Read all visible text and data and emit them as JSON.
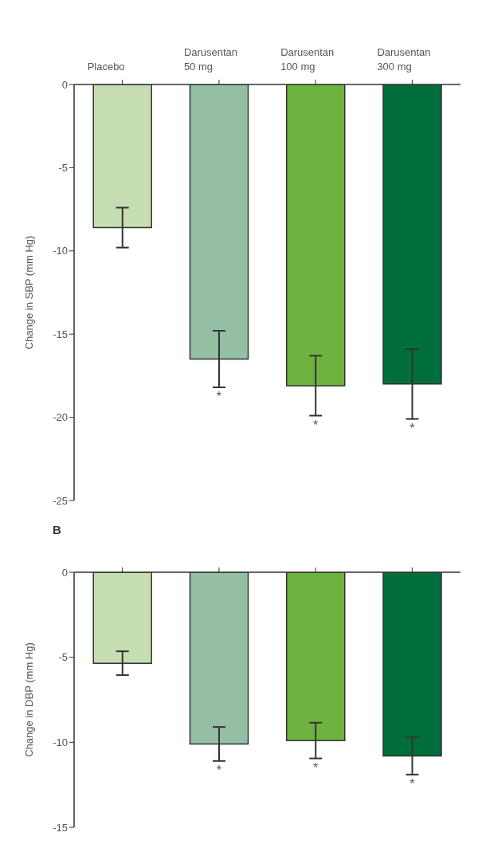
{
  "chart_data": [
    {
      "type": "bar",
      "categories": [
        "Placebo",
        "Darusentan\n50 mg",
        "Darusentan\n100 mg",
        "Darusentan\n300 mg"
      ],
      "ylabel": "Change in SBP (mm Hg)",
      "values": [
        -8.6,
        -16.5,
        -18.1,
        -18.0
      ],
      "errors": [
        1.2,
        1.7,
        1.8,
        2.1
      ],
      "colors": [
        "#c5ddb0",
        "#95bfa5",
        "#6eb33f",
        "#006e3a"
      ],
      "ylim": [
        -25,
        0
      ],
      "yticks": [
        -25,
        -20,
        -15,
        -10,
        -5,
        0
      ],
      "annotations": [
        {
          "text": "*",
          "x": "Darusentan\n50 mg",
          "y": -16.5
        },
        {
          "text": "*",
          "x": "Darusentan\n100 mg",
          "y": -18.1
        },
        {
          "text": "*",
          "x": "Darusentan\n300 mg",
          "y": -18.0
        }
      ]
    },
    {
      "type": "bar",
      "title": "B",
      "categories": [
        "Placebo",
        "Darusentan\n50 mg",
        "Darusentan\n100 mg",
        "Darusentan\n300 mg"
      ],
      "ylabel": "Change in DBP (mm Hg)",
      "tick_labels": "y",
      "values": [
        -5.35,
        -10.1,
        -9.9,
        -10.8
      ],
      "errors": [
        0.7,
        1.0,
        1.05,
        1.1
      ],
      "colors": [
        "#c5ddb0",
        "#95bfa5",
        "#6eb33f",
        "#006e3a"
      ],
      "ylim": [
        -15,
        0
      ],
      "yticks": [
        -15,
        -10,
        -5,
        0
      ],
      "annotations": [
        {
          "text": "*",
          "x": "Darusentan\n50 mg",
          "y": -10.1
        },
        {
          "text": "*",
          "x": "Darusentan\n100 mg",
          "y": -9.9
        },
        {
          "text": "*",
          "x": "Darusentan\n300 mg",
          "y": -10.8
        }
      ]
    }
  ]
}
